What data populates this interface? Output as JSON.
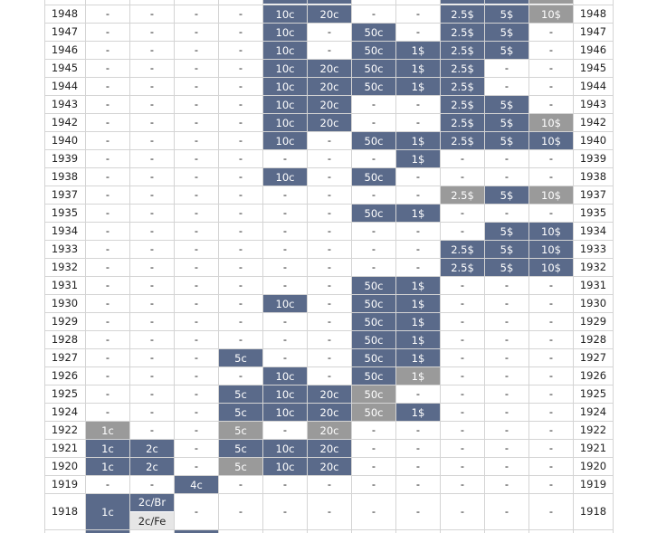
{
  "table": {
    "rows": [
      {
        "year": "1948",
        "cells": [
          "-",
          "-",
          "-",
          "-",
          {
            "t": "10c",
            "c": "b"
          },
          {
            "t": "20c",
            "c": "b"
          },
          "-",
          "-",
          {
            "t": "2.5$",
            "c": "b"
          },
          {
            "t": "5$",
            "c": "b"
          },
          {
            "t": "10$",
            "c": "g"
          }
        ]
      },
      {
        "year": "1947",
        "cells": [
          "-",
          "-",
          "-",
          "-",
          {
            "t": "10c",
            "c": "b"
          },
          "-",
          {
            "t": "50c",
            "c": "b"
          },
          "-",
          {
            "t": "2.5$",
            "c": "b"
          },
          {
            "t": "5$",
            "c": "b"
          },
          "-"
        ]
      },
      {
        "year": "1946",
        "cells": [
          "-",
          "-",
          "-",
          "-",
          {
            "t": "10c",
            "c": "b"
          },
          "-",
          {
            "t": "50c",
            "c": "b"
          },
          {
            "t": "1$",
            "c": "b"
          },
          {
            "t": "2.5$",
            "c": "b"
          },
          {
            "t": "5$",
            "c": "b"
          },
          "-"
        ]
      },
      {
        "year": "1945",
        "cells": [
          "-",
          "-",
          "-",
          "-",
          {
            "t": "10c",
            "c": "b"
          },
          {
            "t": "20c",
            "c": "b"
          },
          {
            "t": "50c",
            "c": "b"
          },
          {
            "t": "1$",
            "c": "b"
          },
          {
            "t": "2.5$",
            "c": "b"
          },
          "-",
          "-"
        ]
      },
      {
        "year": "1944",
        "cells": [
          "-",
          "-",
          "-",
          "-",
          {
            "t": "10c",
            "c": "b"
          },
          {
            "t": "20c",
            "c": "b"
          },
          {
            "t": "50c",
            "c": "b"
          },
          {
            "t": "1$",
            "c": "b"
          },
          {
            "t": "2.5$",
            "c": "b"
          },
          "-",
          "-"
        ]
      },
      {
        "year": "1943",
        "cells": [
          "-",
          "-",
          "-",
          "-",
          {
            "t": "10c",
            "c": "b"
          },
          {
            "t": "20c",
            "c": "b"
          },
          "-",
          "-",
          {
            "t": "2.5$",
            "c": "b"
          },
          {
            "t": "5$",
            "c": "b"
          },
          "-"
        ]
      },
      {
        "year": "1942",
        "cells": [
          "-",
          "-",
          "-",
          "-",
          {
            "t": "10c",
            "c": "b"
          },
          {
            "t": "20c",
            "c": "b"
          },
          "-",
          "-",
          {
            "t": "2.5$",
            "c": "b"
          },
          {
            "t": "5$",
            "c": "b"
          },
          {
            "t": "10$",
            "c": "g"
          }
        ]
      },
      {
        "year": "1940",
        "cells": [
          "-",
          "-",
          "-",
          "-",
          {
            "t": "10c",
            "c": "b"
          },
          "-",
          {
            "t": "50c",
            "c": "b"
          },
          {
            "t": "1$",
            "c": "b"
          },
          {
            "t": "2.5$",
            "c": "b"
          },
          {
            "t": "5$",
            "c": "b"
          },
          {
            "t": "10$",
            "c": "b"
          }
        ]
      },
      {
        "year": "1939",
        "cells": [
          "-",
          "-",
          "-",
          "-",
          "-",
          "-",
          "-",
          {
            "t": "1$",
            "c": "b"
          },
          "-",
          "-",
          "-"
        ]
      },
      {
        "year": "1938",
        "cells": [
          "-",
          "-",
          "-",
          "-",
          {
            "t": "10c",
            "c": "b"
          },
          "-",
          {
            "t": "50c",
            "c": "b"
          },
          "-",
          "-",
          "-",
          "-"
        ]
      },
      {
        "year": "1937",
        "cells": [
          "-",
          "-",
          "-",
          "-",
          "-",
          "-",
          "-",
          "-",
          {
            "t": "2.5$",
            "c": "g"
          },
          {
            "t": "5$",
            "c": "b"
          },
          {
            "t": "10$",
            "c": "g"
          }
        ]
      },
      {
        "year": "1935",
        "cells": [
          "-",
          "-",
          "-",
          "-",
          "-",
          "-",
          {
            "t": "50c",
            "c": "b"
          },
          {
            "t": "1$",
            "c": "b"
          },
          "-",
          "-",
          "-"
        ]
      },
      {
        "year": "1934",
        "cells": [
          "-",
          "-",
          "-",
          "-",
          "-",
          "-",
          "-",
          "-",
          "-",
          {
            "t": "5$",
            "c": "b"
          },
          {
            "t": "10$",
            "c": "b"
          }
        ]
      },
      {
        "year": "1933",
        "cells": [
          "-",
          "-",
          "-",
          "-",
          "-",
          "-",
          "-",
          "-",
          {
            "t": "2.5$",
            "c": "b"
          },
          {
            "t": "5$",
            "c": "b"
          },
          {
            "t": "10$",
            "c": "b"
          }
        ]
      },
      {
        "year": "1932",
        "cells": [
          "-",
          "-",
          "-",
          "-",
          "-",
          "-",
          "-",
          "-",
          {
            "t": "2.5$",
            "c": "b"
          },
          {
            "t": "5$",
            "c": "b"
          },
          {
            "t": "10$",
            "c": "b"
          }
        ]
      },
      {
        "year": "1931",
        "cells": [
          "-",
          "-",
          "-",
          "-",
          "-",
          "-",
          {
            "t": "50c",
            "c": "b"
          },
          {
            "t": "1$",
            "c": "b"
          },
          "-",
          "-",
          "-"
        ]
      },
      {
        "year": "1930",
        "cells": [
          "-",
          "-",
          "-",
          "-",
          {
            "t": "10c",
            "c": "b"
          },
          "-",
          {
            "t": "50c",
            "c": "b"
          },
          {
            "t": "1$",
            "c": "b"
          },
          "-",
          "-",
          "-"
        ]
      },
      {
        "year": "1929",
        "cells": [
          "-",
          "-",
          "-",
          "-",
          "-",
          "-",
          {
            "t": "50c",
            "c": "b"
          },
          {
            "t": "1$",
            "c": "b"
          },
          "-",
          "-",
          "-"
        ]
      },
      {
        "year": "1928",
        "cells": [
          "-",
          "-",
          "-",
          "-",
          "-",
          "-",
          {
            "t": "50c",
            "c": "b"
          },
          {
            "t": "1$",
            "c": "b"
          },
          "-",
          "-",
          "-"
        ]
      },
      {
        "year": "1927",
        "cells": [
          "-",
          "-",
          "-",
          {
            "t": "5c",
            "c": "b"
          },
          "-",
          "-",
          {
            "t": "50c",
            "c": "b"
          },
          {
            "t": "1$",
            "c": "b"
          },
          "-",
          "-",
          "-"
        ]
      },
      {
        "year": "1926",
        "cells": [
          "-",
          "-",
          "-",
          "-",
          {
            "t": "10c",
            "c": "b"
          },
          "-",
          {
            "t": "50c",
            "c": "b"
          },
          {
            "t": "1$",
            "c": "g"
          },
          "-",
          "-",
          "-"
        ]
      },
      {
        "year": "1925",
        "cells": [
          "-",
          "-",
          "-",
          {
            "t": "5c",
            "c": "b"
          },
          {
            "t": "10c",
            "c": "b"
          },
          {
            "t": "20c",
            "c": "b"
          },
          {
            "t": "50c",
            "c": "g"
          },
          "-",
          "-",
          "-",
          "-"
        ]
      },
      {
        "year": "1924",
        "cells": [
          "-",
          "-",
          "-",
          {
            "t": "5c",
            "c": "b"
          },
          {
            "t": "10c",
            "c": "b"
          },
          {
            "t": "20c",
            "c": "b"
          },
          {
            "t": "50c",
            "c": "g"
          },
          {
            "t": "1$",
            "c": "b"
          },
          "-",
          "-",
          "-"
        ]
      },
      {
        "year": "1922",
        "cells": [
          {
            "t": "1c",
            "c": "g"
          },
          "-",
          "-",
          {
            "t": "5c",
            "c": "g"
          },
          "-",
          {
            "t": "20c",
            "c": "g"
          },
          "-",
          "-",
          "-",
          "-",
          "-"
        ]
      },
      {
        "year": "1921",
        "cells": [
          {
            "t": "1c",
            "c": "b"
          },
          {
            "t": "2c",
            "c": "b"
          },
          "-",
          {
            "t": "5c",
            "c": "b"
          },
          {
            "t": "10c",
            "c": "b"
          },
          {
            "t": "20c",
            "c": "b"
          },
          "-",
          "-",
          "-",
          "-",
          "-"
        ]
      },
      {
        "year": "1920",
        "cells": [
          {
            "t": "1c",
            "c": "b"
          },
          {
            "t": "2c",
            "c": "b"
          },
          "-",
          {
            "t": "5c",
            "c": "g"
          },
          {
            "t": "10c",
            "c": "b"
          },
          {
            "t": "20c",
            "c": "b"
          },
          "-",
          "-",
          "-",
          "-",
          "-"
        ]
      },
      {
        "year": "1919",
        "cells": [
          "-",
          "-",
          {
            "t": "4c",
            "c": "b"
          },
          "-",
          "-",
          "-",
          "-",
          "-",
          "-",
          "-",
          "-"
        ]
      },
      {
        "year": "1918",
        "tall": true,
        "cells": [
          {
            "t": "1c",
            "c": "b"
          },
          {
            "split": [
              {
                "t": "2c/Br",
                "c": "b"
              },
              {
                "t": "2c/Fe",
                "c": "l"
              }
            ]
          },
          "-",
          "-",
          "-",
          "-",
          "-",
          "-",
          "-",
          "-",
          "-"
        ]
      }
    ]
  },
  "colors": {
    "blue": "#5a6a8a",
    "gray": "#9a9a9a",
    "light_gray": "#e6e6e6",
    "grid_line": "#d4d4d4"
  }
}
